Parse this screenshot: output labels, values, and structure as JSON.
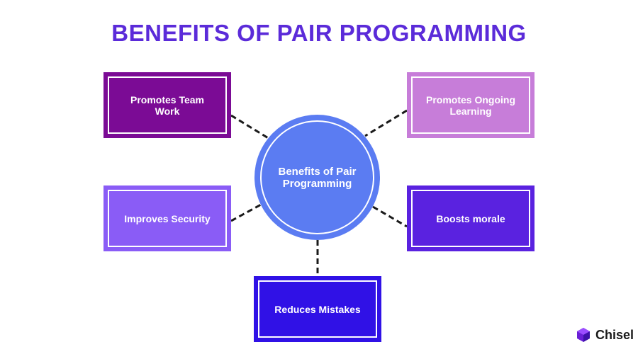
{
  "title": "BENEFITS OF PAIR PROGRAMMING",
  "hub": {
    "label": "Benefits of Pair Programming",
    "color": "#5b7cf2"
  },
  "nodes": [
    {
      "id": "team-work",
      "label": "Promotes Team Work",
      "color": "#7b0b95"
    },
    {
      "id": "ongoing-learning",
      "label": "Promotes Ongoing Learning",
      "color": "#c77dd9"
    },
    {
      "id": "security",
      "label": "Improves Security",
      "color": "#8a5cf6"
    },
    {
      "id": "morale",
      "label": "Boosts morale",
      "color": "#5a22e0"
    },
    {
      "id": "mistakes",
      "label": "Reduces Mistakes",
      "color": "#3011e6"
    }
  ],
  "brand": {
    "name": "Chisel",
    "icon": "chisel-logo-icon"
  }
}
